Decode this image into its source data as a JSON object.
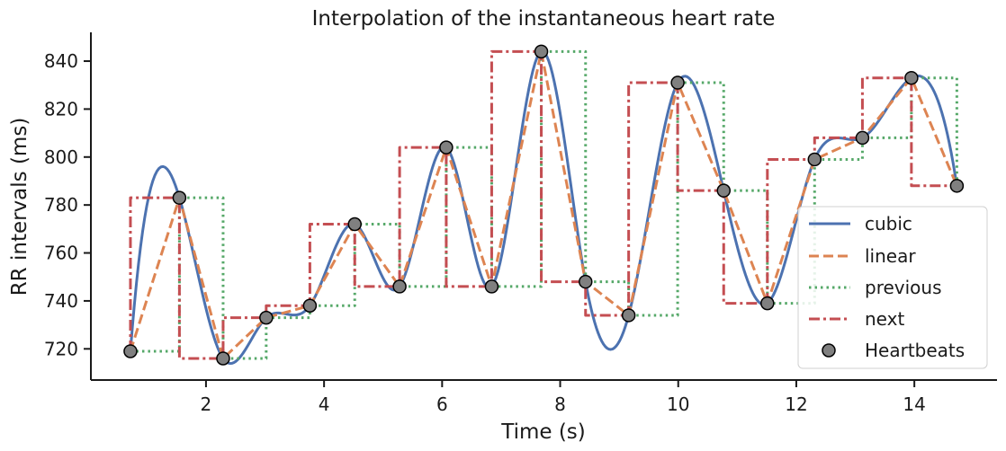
{
  "chart_data": {
    "type": "line",
    "title": "Interpolation of the instantaneous heart rate",
    "xlabel": "Time (s)",
    "ylabel": "RR intervals (ms)",
    "xlim": [
      0.05,
      15.4
    ],
    "ylim": [
      707,
      852
    ],
    "xticks": [
      2,
      4,
      6,
      8,
      10,
      12,
      14
    ],
    "yticks": [
      720,
      740,
      760,
      780,
      800,
      820,
      840
    ],
    "grid": false,
    "legend_position": "lower-right",
    "beats": {
      "x": [
        0.72,
        1.55,
        2.29,
        3.02,
        3.76,
        4.52,
        5.28,
        6.07,
        6.84,
        7.68,
        8.43,
        9.16,
        9.99,
        10.77,
        11.51,
        12.31,
        13.12,
        13.95,
        14.72
      ],
      "y": [
        719,
        783,
        716,
        733,
        738,
        772,
        746,
        804,
        746,
        844,
        748,
        734,
        831,
        786,
        739,
        799,
        808,
        833,
        788
      ]
    },
    "series": [
      {
        "name": "cubic",
        "kind": "cubic",
        "color": "#4c72b0",
        "dash": ""
      },
      {
        "name": "linear",
        "kind": "linear",
        "color": "#dd8452",
        "dash": "11 5"
      },
      {
        "name": "previous",
        "kind": "previous",
        "color": "#55a868",
        "dash": "2.5 4"
      },
      {
        "name": "next",
        "kind": "next",
        "color": "#c44e52",
        "dash": "12 4 3 4"
      },
      {
        "name": "Heartbeats",
        "kind": "points",
        "color": "#808080",
        "dash": ""
      }
    ]
  }
}
